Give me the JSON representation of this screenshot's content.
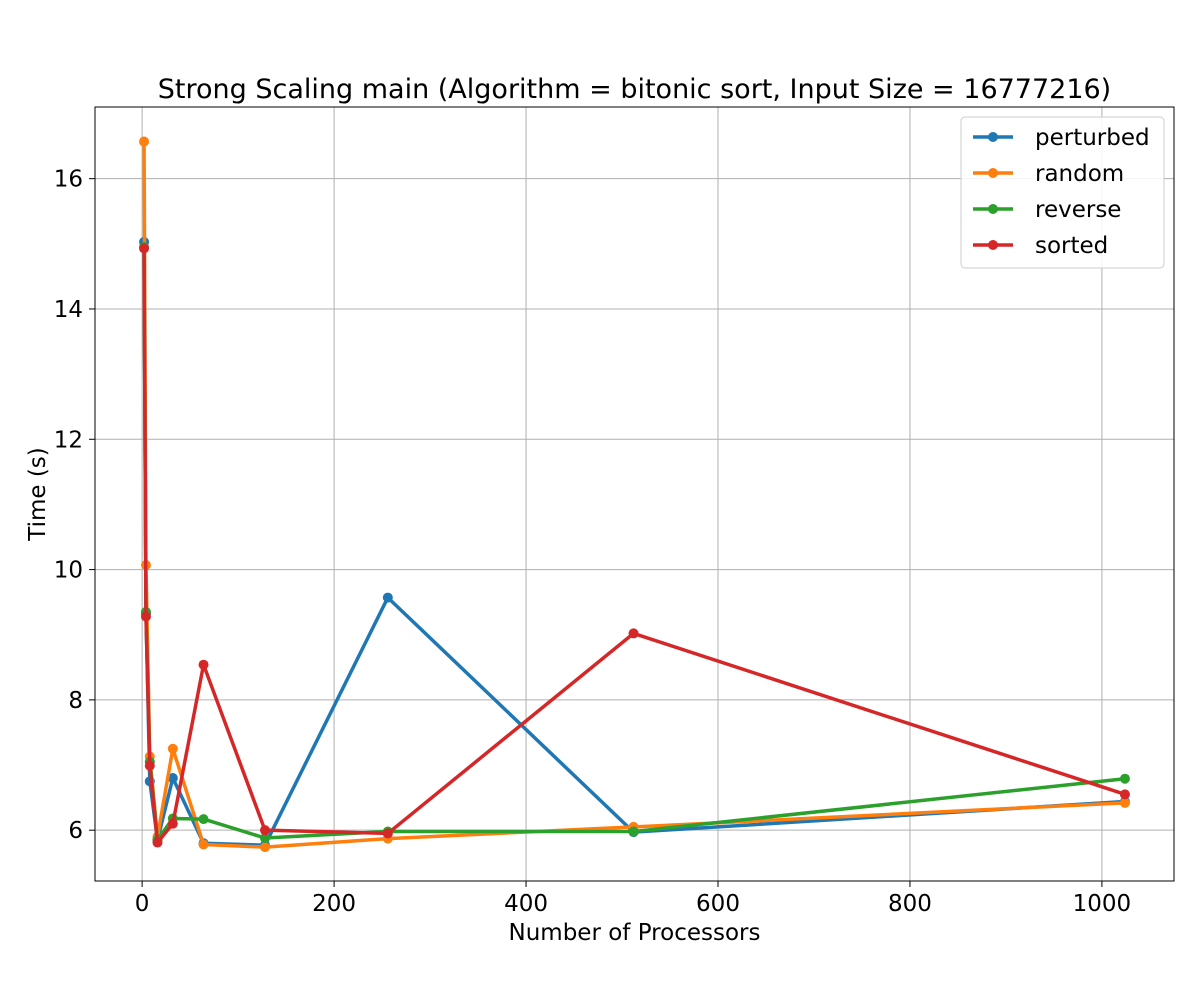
{
  "chart_data": {
    "type": "line",
    "title": "Strong Scaling main (Algorithm = bitonic sort, Input Size = 16777216)",
    "xlabel": "Number of Processors",
    "ylabel": "Time (s)",
    "xlim": [
      -49.1,
      1075.1
    ],
    "ylim": [
      5.22,
      17.1
    ],
    "xticks": [
      0,
      200,
      400,
      600,
      800,
      1000
    ],
    "yticks": [
      6,
      8,
      10,
      12,
      14,
      16
    ],
    "grid": true,
    "legend_position": "top-right",
    "x": [
      2,
      4,
      8,
      16,
      32,
      64,
      128,
      256,
      512,
      1024
    ],
    "series": [
      {
        "name": "perturbed",
        "color": "#1f77b4",
        "values": [
          15.03,
          9.32,
          6.75,
          5.85,
          6.8,
          5.8,
          5.77,
          9.57,
          5.97,
          6.44
        ]
      },
      {
        "name": "random",
        "color": "#ff7f0e",
        "values": [
          16.57,
          10.07,
          7.13,
          5.9,
          7.25,
          5.78,
          5.74,
          5.87,
          6.05,
          6.42
        ]
      },
      {
        "name": "reverse",
        "color": "#2ca02c",
        "values": [
          14.95,
          9.35,
          7.05,
          5.85,
          6.18,
          6.17,
          5.88,
          5.98,
          5.98,
          6.79
        ]
      },
      {
        "name": "sorted",
        "color": "#d62728",
        "values": [
          14.93,
          9.28,
          6.99,
          5.81,
          6.1,
          8.54,
          6.0,
          5.95,
          9.02,
          6.55
        ]
      }
    ]
  }
}
